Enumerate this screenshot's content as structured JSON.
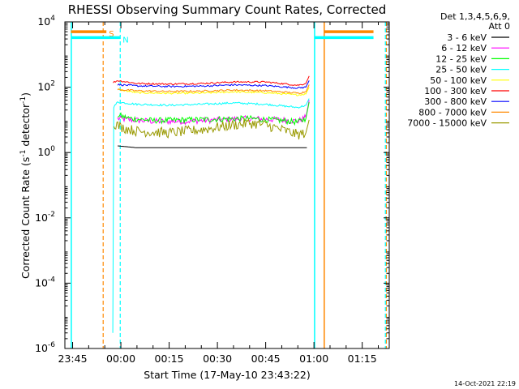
{
  "chart_data": {
    "type": "line",
    "title": "RHESSI Observing Summary Count Rates, Corrected",
    "xlabel": "Start Time (17-May-10 23:43:22)",
    "ylabel": "Corrected Count Rate (s^-1 detector^-1)",
    "ylabel_parts": [
      "Corrected Count Rate (s",
      "-1",
      " detector",
      "-1",
      ")"
    ],
    "y_scale": "log",
    "ylim": [
      1e-06,
      10000
    ],
    "xlim_minutes": [
      -2.4,
      98.4
    ],
    "x_ticks": [
      {
        "label": "23:45",
        "minutes": 0
      },
      {
        "label": "00:00",
        "minutes": 15
      },
      {
        "label": "00:15",
        "minutes": 30
      },
      {
        "label": "00:30",
        "minutes": 45
      },
      {
        "label": "00:45",
        "minutes": 60
      },
      {
        "label": "01:00",
        "minutes": 75
      },
      {
        "label": "01:15",
        "minutes": 90
      }
    ],
    "y_ticks": [
      {
        "base": "10",
        "exp": "-6",
        "value": 1e-06
      },
      {
        "base": "10",
        "exp": "-4",
        "value": 0.0001
      },
      {
        "base": "10",
        "exp": "-2",
        "value": 0.01
      },
      {
        "base": "10",
        "exp": "0",
        "value": 1
      },
      {
        "base": "10",
        "exp": "2",
        "value": 100
      },
      {
        "base": "10",
        "exp": "4",
        "value": 10000
      }
    ],
    "legend": {
      "placement": "right",
      "header": [
        "Det 1,3,4,5,6,9,",
        "Att 0"
      ],
      "entries": [
        "3 - 6 keV",
        "6 - 12 keV",
        "12 - 25 keV",
        "25 - 50 keV",
        "50 - 100 keV",
        "100 - 300 keV",
        "300 - 800 keV",
        "800 - 7000 keV",
        "7000 - 15000 keV"
      ]
    },
    "series": [
      {
        "name": "3 - 6 keV",
        "color": "#000000",
        "data": [
          [
            14,
            1.6
          ],
          [
            20,
            1.4
          ],
          [
            30,
            1.4
          ],
          [
            40,
            1.4
          ],
          [
            50,
            1.4
          ],
          [
            60,
            1.4
          ],
          [
            70,
            1.4
          ],
          [
            72.8,
            1.4
          ]
        ]
      },
      {
        "name": "6 - 12 keV",
        "color": "#ff00ff",
        "data": [
          [
            14,
            11
          ],
          [
            18,
            10
          ],
          [
            25,
            9
          ],
          [
            35,
            9
          ],
          [
            45,
            10
          ],
          [
            55,
            11
          ],
          [
            65,
            10
          ],
          [
            70,
            9
          ],
          [
            72.5,
            12
          ],
          [
            73.5,
            40
          ]
        ]
      },
      {
        "name": "12 - 25 keV",
        "color": "#00ff00",
        "data": [
          [
            14,
            14
          ],
          [
            18,
            11
          ],
          [
            25,
            9.5
          ],
          [
            35,
            10
          ],
          [
            45,
            10.5
          ],
          [
            55,
            11
          ],
          [
            65,
            9.5
          ],
          [
            70,
            8.5
          ],
          [
            72.5,
            11
          ],
          [
            73.5,
            35
          ]
        ]
      },
      {
        "name": "25 - 50 keV",
        "color": "#00ffff",
        "data": [
          [
            12.5,
            3e-06
          ],
          [
            12.8,
            25
          ],
          [
            14,
            35
          ],
          [
            20,
            30
          ],
          [
            30,
            28
          ],
          [
            40,
            30
          ],
          [
            50,
            33
          ],
          [
            60,
            30
          ],
          [
            70,
            24
          ],
          [
            72.5,
            28
          ],
          [
            73.5,
            45
          ]
        ]
      },
      {
        "name": "50 - 100 keV",
        "color": "#ffff00",
        "data": [
          [
            14,
            85
          ],
          [
            20,
            68
          ],
          [
            30,
            65
          ],
          [
            40,
            66
          ],
          [
            50,
            72
          ],
          [
            60,
            68
          ],
          [
            70,
            58
          ],
          [
            72.5,
            62
          ],
          [
            73.5,
            100
          ]
        ]
      },
      {
        "name": "100 - 300 keV",
        "color": "#ff0000",
        "data": [
          [
            12.6,
            140
          ],
          [
            14,
            160
          ],
          [
            20,
            130
          ],
          [
            30,
            125
          ],
          [
            40,
            130
          ],
          [
            50,
            145
          ],
          [
            60,
            145
          ],
          [
            70,
            115
          ],
          [
            72.5,
            130
          ],
          [
            73.5,
            220
          ]
        ]
      },
      {
        "name": "300 - 800 keV",
        "color": "#0000ff",
        "data": [
          [
            14,
            120
          ],
          [
            20,
            110
          ],
          [
            30,
            105
          ],
          [
            40,
            108
          ],
          [
            50,
            118
          ],
          [
            60,
            112
          ],
          [
            70,
            95
          ],
          [
            72.5,
            100
          ],
          [
            73.5,
            160
          ]
        ]
      },
      {
        "name": "800 - 7000 keV",
        "color": "#ff8800",
        "data": [
          [
            14,
            85
          ],
          [
            20,
            78
          ],
          [
            30,
            74
          ],
          [
            40,
            76
          ],
          [
            50,
            82
          ],
          [
            60,
            78
          ],
          [
            70,
            66
          ],
          [
            72.5,
            72
          ],
          [
            73.5,
            120
          ]
        ]
      },
      {
        "name": "7000 - 15000 keV",
        "color": "#999900",
        "data": [
          [
            12.8,
            8
          ],
          [
            15,
            6
          ],
          [
            20,
            4.5
          ],
          [
            30,
            4
          ],
          [
            40,
            5
          ],
          [
            50,
            7
          ],
          [
            55,
            8
          ],
          [
            60,
            7
          ],
          [
            65,
            5
          ],
          [
            70,
            3.5
          ],
          [
            72.5,
            4
          ],
          [
            73.5,
            10
          ]
        ]
      }
    ],
    "flags": [
      {
        "label": "S",
        "color": "#ff8800",
        "dashed_times": [
          9.5,
          97.5
        ],
        "bars": [
          [
            -0.5,
            10.5
          ],
          [
            78.2,
            93.5
          ]
        ],
        "bar_level": 5000
      },
      {
        "label": "N",
        "color": "#00ffff",
        "dashed_times": [
          14.8,
          97.2
        ],
        "bars": [
          [
            -0.5,
            14.8
          ],
          [
            75.2,
            93.5
          ]
        ],
        "bar_level": 3300
      }
    ],
    "solid_markers": [
      {
        "color": "#00ffff",
        "times": [
          -0.4,
          75.2
        ]
      },
      {
        "color": "#ff8800",
        "times": [
          78.2
        ]
      }
    ]
  },
  "footer": {
    "date": "14-Oct-2021 22:19"
  }
}
